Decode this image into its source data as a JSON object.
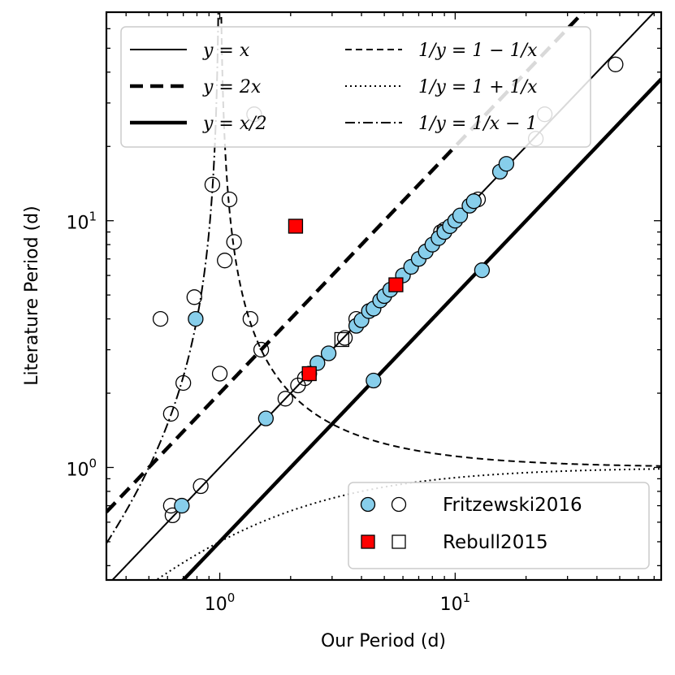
{
  "chart_data": {
    "type": "scatter",
    "xlabel": "Our Period (d)",
    "ylabel": "Literature Period (d)",
    "x_scale": "log",
    "y_scale": "log",
    "xlim": [
      0.33,
      75
    ],
    "ylim": [
      0.35,
      70
    ],
    "x_ticks": [
      {
        "value": 1,
        "base": "10",
        "exp": "0"
      },
      {
        "value": 10,
        "base": "10",
        "exp": "1"
      }
    ],
    "y_ticks": [
      {
        "value": 1,
        "base": "10",
        "exp": "0"
      },
      {
        "value": 10,
        "base": "10",
        "exp": "1"
      }
    ],
    "lines": [
      {
        "name": "y = x",
        "style": "solid-thin"
      },
      {
        "name": "y = 2x",
        "style": "dashed-thick"
      },
      {
        "name": "y = x/2",
        "style": "solid-thick"
      },
      {
        "name": "1/y = 1 − 1/x",
        "style": "dashed-thin"
      },
      {
        "name": "1/y = 1 + 1/x",
        "style": "dotted"
      },
      {
        "name": "1/y = 1/x − 1",
        "style": "dashdot"
      }
    ],
    "series": [
      {
        "name": "Fritzewski2016",
        "marker": "circle",
        "filled_color": "#87CEEB",
        "filled": [
          [
            0.69,
            0.7
          ],
          [
            0.79,
            4.0
          ],
          [
            1.57,
            1.58
          ],
          [
            2.4,
            2.4
          ],
          [
            2.6,
            2.65
          ],
          [
            2.9,
            2.9
          ],
          [
            3.8,
            3.75
          ],
          [
            4.0,
            3.95
          ],
          [
            4.3,
            4.3
          ],
          [
            4.5,
            4.4
          ],
          [
            4.5,
            2.25
          ],
          [
            4.8,
            4.75
          ],
          [
            5.0,
            4.95
          ],
          [
            5.3,
            5.25
          ],
          [
            6.0,
            6.0
          ],
          [
            6.5,
            6.5
          ],
          [
            7.0,
            7.0
          ],
          [
            7.5,
            7.5
          ],
          [
            8.0,
            8.0
          ],
          [
            8.5,
            8.5
          ],
          [
            9.0,
            9.0
          ],
          [
            9.5,
            9.5
          ],
          [
            10.0,
            10.0
          ],
          [
            10.5,
            10.5
          ],
          [
            11.5,
            11.5
          ],
          [
            12.0,
            12.0
          ],
          [
            13.0,
            6.3
          ],
          [
            15.5,
            15.8
          ],
          [
            16.5,
            17.0
          ]
        ],
        "open": [
          [
            0.56,
            4.0
          ],
          [
            0.62,
            0.7
          ],
          [
            0.62,
            1.65
          ],
          [
            0.63,
            0.64
          ],
          [
            0.7,
            2.2
          ],
          [
            0.78,
            4.9
          ],
          [
            0.83,
            0.84
          ],
          [
            0.93,
            14.0
          ],
          [
            1.0,
            2.4
          ],
          [
            1.05,
            6.9
          ],
          [
            1.1,
            12.2
          ],
          [
            1.15,
            8.2
          ],
          [
            1.35,
            4.0
          ],
          [
            1.5,
            3.0
          ],
          [
            1.4,
            27.0
          ],
          [
            1.9,
            1.9
          ],
          [
            2.15,
            2.15
          ],
          [
            2.3,
            2.3
          ],
          [
            3.4,
            3.35
          ],
          [
            3.8,
            4.0
          ],
          [
            8.7,
            9.0
          ],
          [
            9.0,
            9.2
          ],
          [
            12.5,
            12.2
          ],
          [
            22.0,
            21.5
          ],
          [
            24.0,
            27.0
          ],
          [
            48.0,
            43.0
          ]
        ]
      },
      {
        "name": "Rebull2015",
        "marker": "square",
        "filled_color": "#FF0000",
        "filled": [
          [
            2.1,
            9.5
          ],
          [
            2.4,
            2.4
          ],
          [
            5.6,
            5.5
          ]
        ],
        "open": [
          [
            3.3,
            3.3
          ]
        ]
      }
    ],
    "legend": {
      "upper": "top-left",
      "lower": "bottom-right"
    },
    "grid": false
  }
}
